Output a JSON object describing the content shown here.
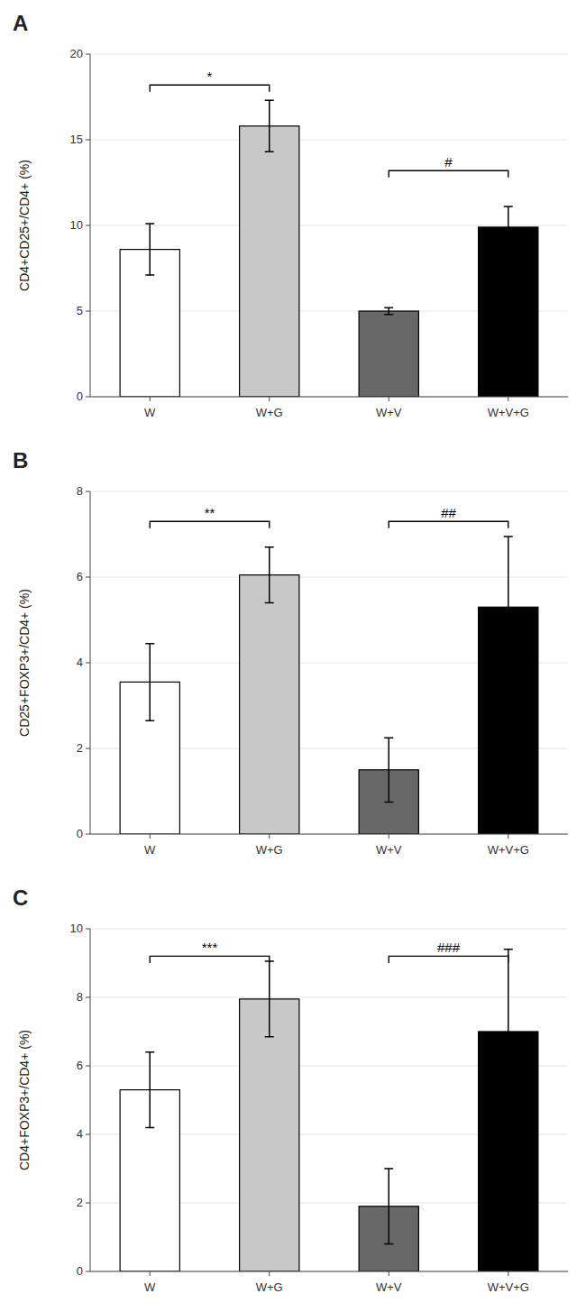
{
  "chart_data": [
    {
      "type": "bar",
      "title": "A",
      "ylabel": "CD4+CD25+/CD4+ (%)",
      "categories": [
        "W",
        "W+G",
        "W+V",
        "W+V+G"
      ],
      "values": [
        8.6,
        15.8,
        5.0,
        9.9
      ],
      "errors": [
        1.5,
        1.5,
        0.2,
        1.2
      ],
      "colors": [
        "#ffffff",
        "#c8c8c8",
        "#686868",
        "#000000"
      ],
      "ylim": [
        0,
        20
      ],
      "yticks": [
        0,
        5,
        10,
        15,
        20
      ],
      "annotations": [
        {
          "label": "*",
          "x1": "W",
          "x2": "W+G",
          "y": 18.2
        },
        {
          "label": "#",
          "x1": "W+V",
          "x2": "W+V+G",
          "y": 13.2
        }
      ]
    },
    {
      "type": "bar",
      "title": "B",
      "ylabel": "CD25+FOXP3+/CD4+ (%)",
      "categories": [
        "W",
        "W+G",
        "W+V",
        "W+V+G"
      ],
      "values": [
        3.55,
        6.05,
        1.5,
        5.3
      ],
      "errors": [
        0.9,
        0.65,
        0.75,
        1.65
      ],
      "colors": [
        "#ffffff",
        "#c8c8c8",
        "#686868",
        "#000000"
      ],
      "ylim": [
        0,
        8
      ],
      "yticks": [
        0,
        2,
        4,
        6,
        8
      ],
      "annotations": [
        {
          "label": "**",
          "x1": "W",
          "x2": "W+G",
          "y": 7.3
        },
        {
          "label": "##",
          "x1": "W+V",
          "x2": "W+V+G",
          "y": 7.3
        }
      ]
    },
    {
      "type": "bar",
      "title": "C",
      "ylabel": "CD4+FOXP3+/CD4+ (%)",
      "categories": [
        "W",
        "W+G",
        "W+V",
        "W+V+G"
      ],
      "values": [
        5.3,
        7.95,
        1.9,
        7.0
      ],
      "errors": [
        1.1,
        1.1,
        1.1,
        2.4
      ],
      "colors": [
        "#ffffff",
        "#c8c8c8",
        "#686868",
        "#000000"
      ],
      "ylim": [
        0,
        10
      ],
      "yticks": [
        0,
        2,
        4,
        6,
        8,
        10
      ],
      "annotations": [
        {
          "label": "***",
          "x1": "W",
          "x2": "W+G",
          "y": 9.2
        },
        {
          "label": "###",
          "x1": "W+V",
          "x2": "W+V+G",
          "y": 9.2
        }
      ]
    }
  ]
}
